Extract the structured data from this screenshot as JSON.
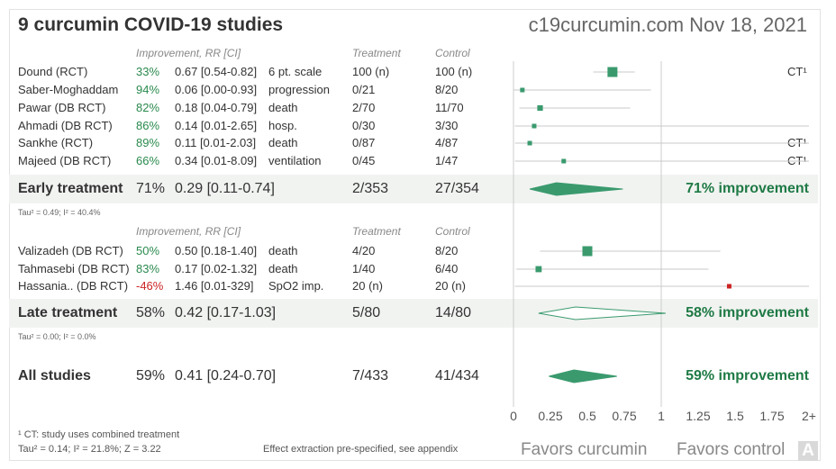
{
  "title": "9 curcumin COVID-19 studies",
  "site": "c19curcumin.com Nov 18, 2021",
  "headers": {
    "improvement": "Improvement, RR [CI]",
    "treatment": "Treatment",
    "control": "Control"
  },
  "colors": {
    "accent": "#2a8a4e",
    "negative": "#cc2222",
    "marker": "#3a9a6e"
  },
  "early": {
    "label": "Early treatment",
    "pct": "71%",
    "rr": "0.29 [0.11-0.74]",
    "treatment": "2/353",
    "control": "27/354",
    "improvement": "71% improvement",
    "tau": "Tau² = 0.49; I² = 40.4%"
  },
  "late": {
    "label": "Late treatment",
    "pct": "58%",
    "rr": "0.42 [0.17-1.03]",
    "treatment": "5/80",
    "control": "14/80",
    "improvement": "58% improvement",
    "tau": "Tau² = 0.00; I² = 0.0%"
  },
  "all": {
    "label": "All studies",
    "pct": "59%",
    "rr": "0.41 [0.24-0.70]",
    "treatment": "7/433",
    "control": "41/434",
    "improvement": "59% improvement"
  },
  "footer": {
    "ct_note": "¹ CT: study uses combined treatment",
    "stats": "Tau² = 0.14; I² = 21.8%; Z = 3.22",
    "extraction": "Effect extraction pre-specified, see appendix",
    "favors_left": "Favors curcumin",
    "favors_right": "Favors control",
    "logo": "A"
  },
  "chart_data": {
    "type": "forest",
    "xlim": [
      0,
      2
    ],
    "x_ticks": [
      "0",
      "0.25",
      "0.5",
      "0.75",
      "1",
      "1.25",
      "1.5",
      "1.75",
      "2+"
    ],
    "reference_line": 1,
    "groups": [
      {
        "name": "Early treatment",
        "studies": [
          {
            "name": "Dound (RCT)",
            "pct": "33%",
            "rr": 0.67,
            "lo": 0.54,
            "hi": 0.82,
            "rr_text": "0.67 [0.54-0.82]",
            "outcome": "6 pt. scale",
            "treatment": "100 (n)",
            "control": "100 (n)",
            "ct": "CT¹",
            "weight": 3
          },
          {
            "name": "Saber-Moghaddam",
            "pct": "94%",
            "rr": 0.06,
            "lo": 0.0,
            "hi": 0.93,
            "rr_text": "0.06 [0.00-0.93]",
            "outcome": "progression",
            "treatment": "0/21",
            "control": "8/20",
            "ct": "",
            "weight": 1
          },
          {
            "name": "Pawar (DB RCT)",
            "pct": "82%",
            "rr": 0.18,
            "lo": 0.04,
            "hi": 0.79,
            "rr_text": "0.18 [0.04-0.79]",
            "outcome": "death",
            "treatment": "2/70",
            "control": "11/70",
            "ct": "",
            "weight": 1.4
          },
          {
            "name": "Ahmadi (DB RCT)",
            "pct": "86%",
            "rr": 0.14,
            "lo": 0.01,
            "hi": 2.65,
            "rr_text": "0.14 [0.01-2.65]",
            "outcome": "hosp.",
            "treatment": "0/30",
            "control": "3/30",
            "ct": "",
            "weight": 1
          },
          {
            "name": "Sankhe (RCT)",
            "pct": "89%",
            "rr": 0.11,
            "lo": 0.01,
            "hi": 2.03,
            "rr_text": "0.11 [0.01-2.03]",
            "outcome": "death",
            "treatment": "0/87",
            "control": "4/87",
            "ct": "CT¹",
            "weight": 1
          },
          {
            "name": "Majeed (DB RCT)",
            "pct": "66%",
            "rr": 0.34,
            "lo": 0.01,
            "hi": 8.09,
            "rr_text": "0.34 [0.01-8.09]",
            "outcome": "ventilation",
            "treatment": "0/45",
            "control": "1/47",
            "ct": "CT¹",
            "weight": 1
          }
        ],
        "pooled": {
          "rr": 0.29,
          "lo": 0.11,
          "hi": 0.74,
          "filled": true
        }
      },
      {
        "name": "Late treatment",
        "studies": [
          {
            "name": "Valizadeh (DB RCT)",
            "pct": "50%",
            "rr": 0.5,
            "lo": 0.18,
            "hi": 1.4,
            "rr_text": "0.50 [0.18-1.40]",
            "outcome": "death",
            "treatment": "4/20",
            "control": "8/20",
            "ct": "",
            "weight": 3
          },
          {
            "name": "Tahmasebi (DB RCT)",
            "pct": "83%",
            "rr": 0.17,
            "lo": 0.02,
            "hi": 1.32,
            "rr_text": "0.17 [0.02-1.32]",
            "outcome": "death",
            "treatment": "1/40",
            "control": "6/40",
            "ct": "",
            "weight": 1.6
          },
          {
            "name": "Hassania.. (DB RCT)",
            "pct": "-46%",
            "rr": 1.46,
            "lo": 0.01,
            "hi": 329,
            "rr_text": "1.46 [0.01-329]",
            "outcome": "SpO2 imp.",
            "treatment": "20 (n)",
            "control": "20 (n)",
            "ct": "",
            "weight": 1,
            "negative": true
          }
        ],
        "pooled": {
          "rr": 0.42,
          "lo": 0.17,
          "hi": 1.03,
          "filled": false
        }
      }
    ],
    "overall": {
      "rr": 0.41,
      "lo": 0.24,
      "hi": 0.7,
      "filled": true
    }
  }
}
